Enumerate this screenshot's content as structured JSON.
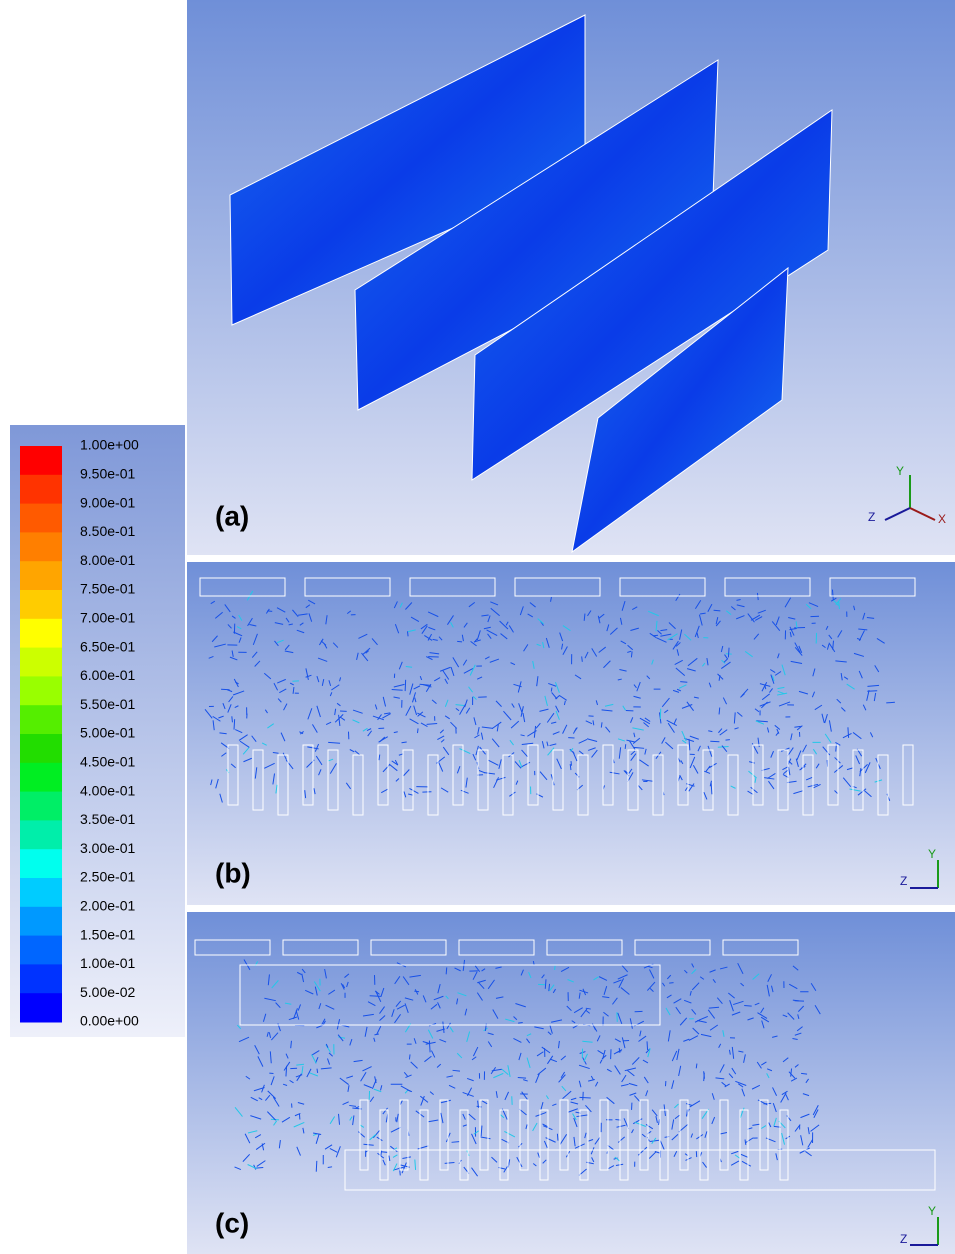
{
  "colorbar": {
    "labels": [
      "1.00e+00",
      "9.50e-01",
      "9.00e-01",
      "8.50e-01",
      "8.00e-01",
      "7.50e-01",
      "7.00e-01",
      "6.50e-01",
      "6.00e-01",
      "5.50e-01",
      "5.00e-01",
      "4.50e-01",
      "4.00e-01",
      "3.50e-01",
      "3.00e-01",
      "2.50e-01",
      "2.00e-01",
      "1.50e-01",
      "1.00e-01",
      "5.00e-02",
      "0.00e+00"
    ],
    "colors": [
      "#ff0000",
      "#ff3300",
      "#ff5a00",
      "#ff7f00",
      "#ffa500",
      "#ffcc00",
      "#ffff00",
      "#ccff00",
      "#99ff00",
      "#55ee00",
      "#22dd00",
      "#00ee22",
      "#00ee66",
      "#00eeaa",
      "#00ffee",
      "#00ccff",
      "#0099ff",
      "#0066ff",
      "#0033ff",
      "#0000ff"
    ]
  },
  "panels": [
    {
      "label": "(a)",
      "axes": [
        "Y",
        "Z",
        "X"
      ]
    },
    {
      "label": "(b)",
      "axes": [
        "Y",
        "Z"
      ]
    },
    {
      "label": "(c)",
      "axes": [
        "Y",
        "Z"
      ]
    }
  ]
}
